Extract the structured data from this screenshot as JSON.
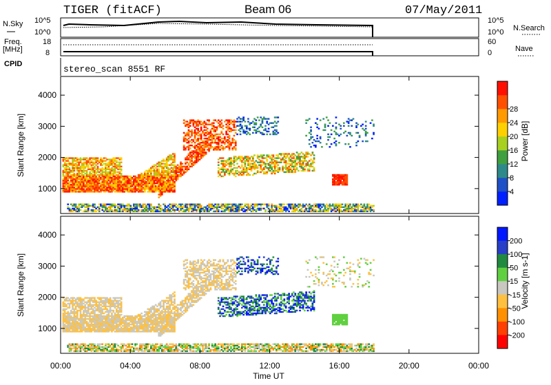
{
  "header": {
    "station": "TIGER (fitACF)",
    "beam": "Beam 06",
    "date": "07/May/2011"
  },
  "top_panels": {
    "nsky_label": "N.Sky",
    "nsky_ticks": [
      "10^5",
      "10^0"
    ],
    "nsearch_label": "N.Search",
    "freq_label_line1": "Freq.",
    "freq_label_line2": "[MHz]",
    "freq_ticks": [
      "18",
      "8"
    ],
    "nave_label": "Nave",
    "nave_ticks": [
      "60",
      "0"
    ],
    "cpid_label": "CPID",
    "cpid_value": "stereo_scan 8551 RF"
  },
  "chart_data": [
    {
      "type": "heatmap",
      "name": "power",
      "ylabel": "Slant Range [km]",
      "yticks": [
        1000,
        2000,
        3000,
        4000
      ],
      "xticks": [
        "00:00",
        "04:00",
        "08:00",
        "12:00",
        "16:00",
        "20:00",
        "00:00"
      ],
      "ylim": [
        200,
        4600
      ],
      "xlim_hours": [
        0,
        24
      ],
      "colorbar": {
        "label": "Power [dB]",
        "ticks": [
          "4",
          "8",
          "12",
          "16",
          "20",
          "24",
          "28"
        ],
        "colors": [
          "#0020ff",
          "#1e50c8",
          "#2e8a8a",
          "#40a040",
          "#a8d020",
          "#ffd000",
          "#ff9a00",
          "#ff5000",
          "#ff1000"
        ]
      }
    },
    {
      "type": "heatmap",
      "name": "velocity",
      "ylabel": "Slant Range [km]",
      "yticks": [
        1000,
        2000,
        3000,
        4000
      ],
      "xticks": [
        "00:00",
        "04:00",
        "08:00",
        "12:00",
        "16:00",
        "20:00",
        "00:00"
      ],
      "xlabel": "Time UT",
      "ylim": [
        200,
        4600
      ],
      "xlim_hours": [
        0,
        24
      ],
      "colorbar": {
        "label": "Velocity [m s-1]",
        "ticks": [
          "200",
          "100",
          "50",
          "15",
          "-15",
          "-50",
          "-100",
          "-200"
        ],
        "colors": [
          "#0018ff",
          "#2840c8",
          "#208a40",
          "#60d040",
          "#c8c8c0",
          "#ffc040",
          "#ff9000",
          "#ff4000",
          "#ff0000"
        ],
        "ground_scatter_color": "#c8c8c0"
      }
    }
  ]
}
